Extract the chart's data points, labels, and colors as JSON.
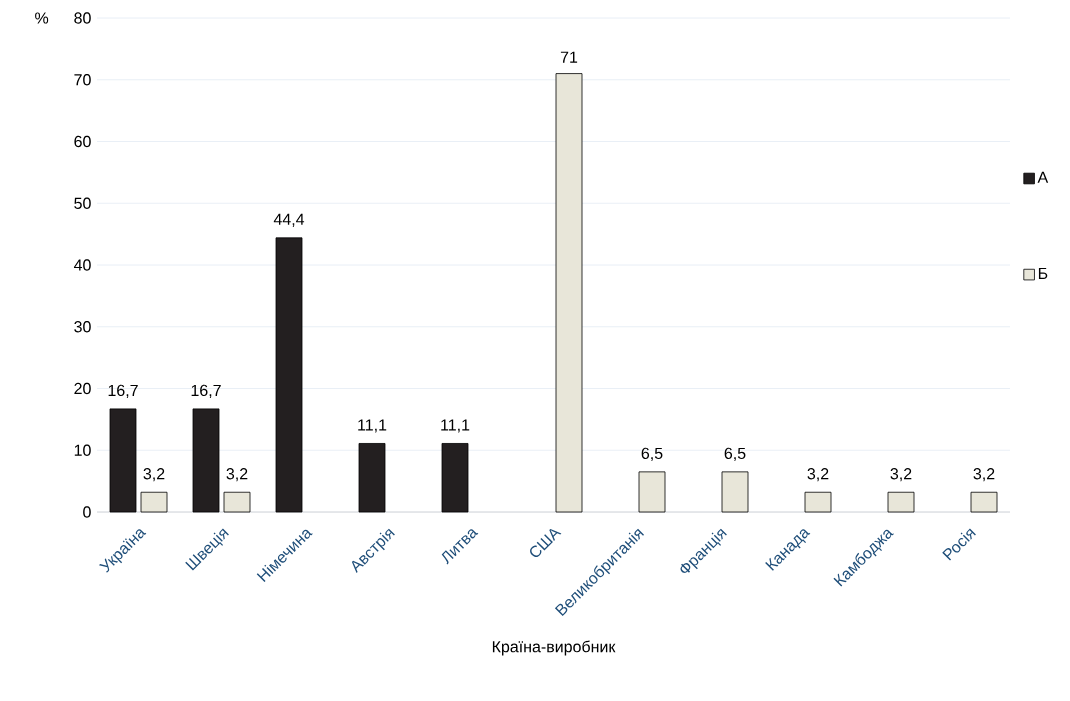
{
  "chart_data": {
    "type": "bar",
    "categories": [
      "Україна",
      "Швеція",
      "Німечина",
      "Австрія",
      "Литва",
      "США",
      "Великобританія",
      "Франція",
      "Канада",
      "Камбоджа",
      "Росія"
    ],
    "series": [
      {
        "name": "А",
        "color": "#231f20",
        "values": [
          16.7,
          16.7,
          44.4,
          11.1,
          11.1,
          null,
          null,
          null,
          null,
          null,
          null
        ],
        "value_labels": [
          "16,7",
          "16,7",
          "44,4",
          "11,1",
          "11,1",
          null,
          null,
          null,
          null,
          null,
          null
        ]
      },
      {
        "name": "Б",
        "color": "#e8e6d9",
        "values": [
          3.2,
          3.2,
          null,
          null,
          null,
          71,
          6.5,
          6.5,
          3.2,
          3.2,
          3.2
        ],
        "value_labels": [
          "3,2",
          "3,2",
          null,
          null,
          null,
          "71",
          "6,5",
          "6,5",
          "3,2",
          "3,2",
          "3,2"
        ]
      }
    ],
    "xlabel": "Країна-виробник",
    "ylabel": "%",
    "ylim": [
      0,
      80
    ],
    "yticks": [
      0,
      10,
      20,
      30,
      40,
      50,
      60,
      70,
      80
    ],
    "grid": "y",
    "legend": "right"
  }
}
